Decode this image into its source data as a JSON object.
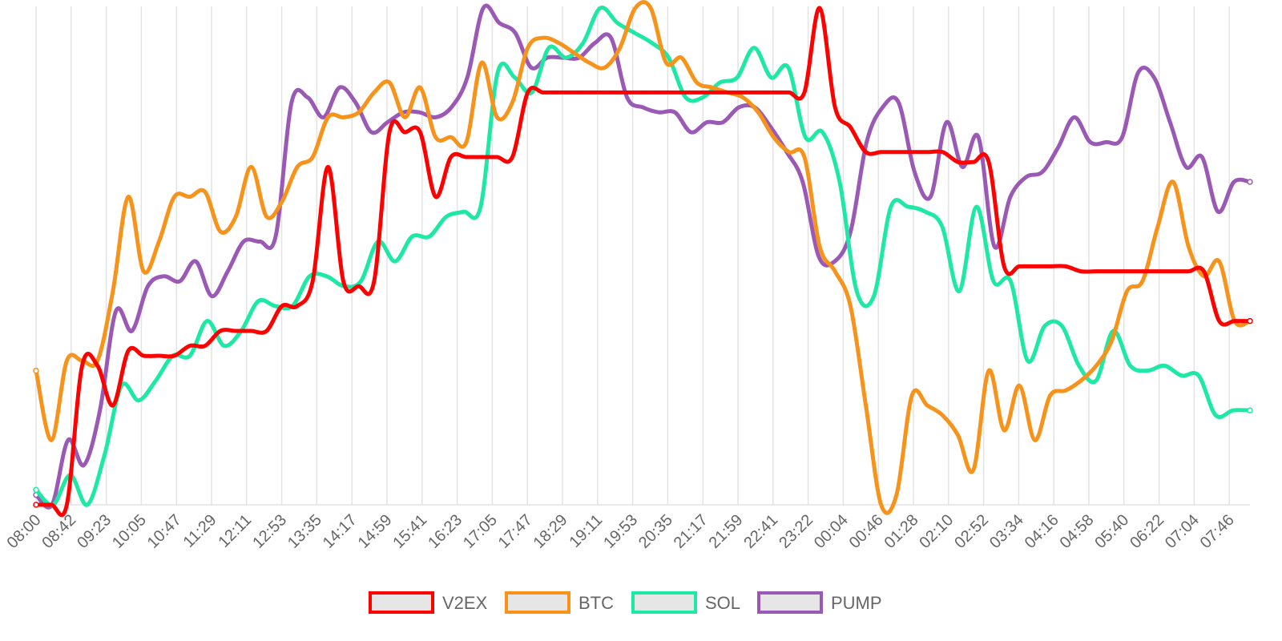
{
  "chart_data": {
    "type": "line",
    "title": "",
    "xlabel": "",
    "ylabel": "",
    "ylim": [
      0,
      100
    ],
    "grid": {
      "vertical": true,
      "horizontal": false
    },
    "legend_position": "bottom",
    "x_ticks": [
      "08:00",
      "08:42",
      "09:23",
      "10:05",
      "10:47",
      "11:29",
      "12:11",
      "12:53",
      "13:35",
      "14:17",
      "14:59",
      "15:41",
      "16:23",
      "17:05",
      "17:47",
      "18:29",
      "19:11",
      "19:53",
      "20:35",
      "21:17",
      "21:59",
      "22:41",
      "23:22",
      "00:04",
      "00:46",
      "01:28",
      "02:10",
      "02:52",
      "03:34",
      "04:16",
      "04:58",
      "05:40",
      "06:22",
      "07:04",
      "07:46"
    ],
    "series": [
      {
        "name": "V2EX",
        "color": "#ff0000",
        "values": [
          0,
          0,
          0,
          28,
          28,
          20,
          31,
          30,
          30,
          30,
          32,
          32,
          35,
          35,
          35,
          35,
          40,
          40,
          45,
          68,
          45,
          44,
          45,
          75,
          75,
          75,
          62,
          70,
          70,
          70,
          70,
          70,
          83,
          83,
          83,
          83,
          83,
          83,
          83,
          83,
          83,
          83,
          83,
          83,
          83,
          83,
          83,
          83,
          83,
          83,
          83,
          100,
          80,
          76,
          71,
          71,
          71,
          71,
          71,
          71,
          69,
          69,
          69,
          48,
          48,
          48,
          48,
          48,
          47,
          47,
          47,
          47,
          47,
          47,
          47,
          47,
          47,
          37,
          37,
          37
        ]
      },
      {
        "name": "BTC",
        "color": "#f7931a",
        "values": [
          27,
          13,
          29,
          29,
          29,
          43,
          62,
          47,
          53,
          62,
          62,
          63,
          55,
          58,
          68,
          58,
          61,
          68,
          70,
          78,
          78,
          79,
          83,
          85,
          78,
          84,
          74,
          74,
          73,
          89,
          78,
          81,
          92,
          94,
          93,
          91,
          89,
          88,
          92,
          100,
          100,
          89,
          90,
          85,
          84,
          83,
          82,
          79,
          74,
          71,
          70,
          52,
          47,
          40,
          20,
          0,
          2,
          22,
          20,
          18,
          14,
          7,
          27,
          15,
          24,
          13,
          22,
          23,
          25,
          28,
          33,
          43,
          45,
          56,
          65,
          52,
          46,
          49,
          37,
          37
        ]
      },
      {
        "name": "SOL",
        "color": "#1de9a4",
        "values": [
          3,
          0,
          6,
          0,
          10,
          24,
          21,
          25,
          30,
          30,
          37,
          32,
          35,
          41,
          40,
          40,
          46,
          46,
          44,
          45,
          53,
          49,
          54,
          54,
          58,
          59,
          60,
          87,
          86,
          83,
          92,
          90,
          93,
          100,
          97,
          95,
          93,
          90,
          82,
          82,
          85,
          86,
          92,
          86,
          88,
          74,
          75,
          65,
          43,
          42,
          60,
          60,
          59,
          56,
          43,
          60,
          45,
          45,
          29,
          36,
          36,
          28,
          25,
          35,
          28,
          27,
          28,
          26,
          26,
          18,
          19,
          19
        ]
      },
      {
        "name": "PUMP",
        "color": "#9b59b6",
        "values": [
          2,
          0,
          13,
          8,
          19,
          39,
          35,
          44,
          46,
          45,
          49,
          42,
          47,
          53,
          53,
          54,
          81,
          82,
          78,
          84,
          81,
          75,
          77,
          79,
          79,
          78,
          80,
          86,
          100,
          97,
          95,
          88,
          90,
          90,
          90,
          93,
          94,
          82,
          80,
          79,
          79,
          75,
          77,
          77,
          80,
          80,
          76,
          71,
          65,
          50,
          49,
          55,
          73,
          80,
          81,
          67,
          62,
          77,
          68,
          74,
          52,
          62,
          66,
          67,
          72,
          78,
          73,
          73,
          74,
          87,
          86,
          77,
          68,
          70,
          59,
          65,
          65
        ]
      }
    ]
  }
}
